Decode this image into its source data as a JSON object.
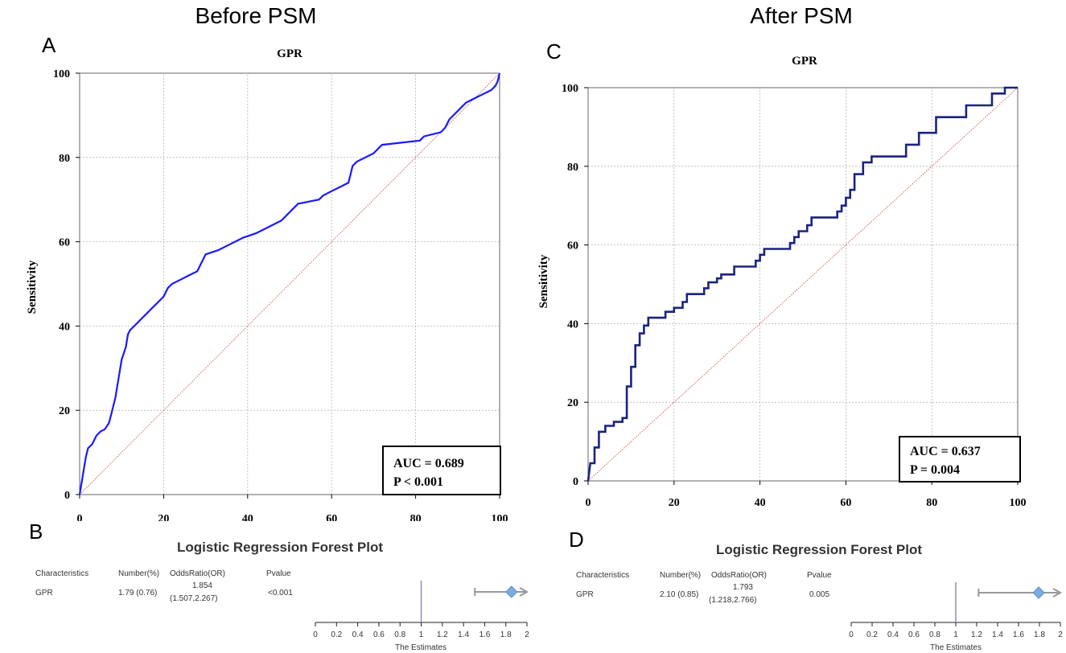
{
  "headers": {
    "before": "Before PSM",
    "after": "After PSM"
  },
  "panel_letters": {
    "a": "A",
    "b": "B",
    "c": "C",
    "d": "D"
  },
  "chart_data": [
    {
      "type": "line",
      "panel": "A",
      "title": "GPR",
      "xlabel": "",
      "ylabel": "Sensitivity",
      "xlim": [
        0,
        100
      ],
      "ylim": [
        0,
        100
      ],
      "yticks": [
        "0",
        "20",
        "40",
        "60",
        "80",
        "100"
      ],
      "xticks": [
        "0",
        "20",
        "40",
        "60",
        "80",
        "100"
      ],
      "grid": true,
      "line_color": "#1a1aff",
      "annotation": {
        "auc": "AUC = 0.689",
        "p": "P < 0.001"
      },
      "roc": [
        [
          0,
          0
        ],
        [
          0.5,
          3
        ],
        [
          1,
          6
        ],
        [
          1.5,
          9
        ],
        [
          2,
          11
        ],
        [
          3,
          12
        ],
        [
          3.5,
          13
        ],
        [
          4,
          14
        ],
        [
          5,
          15
        ],
        [
          6,
          15.5
        ],
        [
          7,
          17
        ],
        [
          7.5,
          19
        ],
        [
          8,
          21
        ],
        [
          8.5,
          23
        ],
        [
          9,
          26
        ],
        [
          9.5,
          29
        ],
        [
          10,
          32
        ],
        [
          11,
          35
        ],
        [
          11.5,
          38
        ],
        [
          12,
          39
        ],
        [
          13,
          40
        ],
        [
          14,
          41
        ],
        [
          15,
          42
        ],
        [
          16,
          43
        ],
        [
          17,
          44
        ],
        [
          18,
          45
        ],
        [
          19,
          46
        ],
        [
          20,
          47
        ],
        [
          21,
          49
        ],
        [
          22,
          50
        ],
        [
          24,
          51
        ],
        [
          26,
          52
        ],
        [
          28,
          53
        ],
        [
          29,
          55
        ],
        [
          30,
          57
        ],
        [
          33,
          58
        ],
        [
          35,
          59
        ],
        [
          37,
          60
        ],
        [
          39,
          61
        ],
        [
          42,
          62
        ],
        [
          44,
          63
        ],
        [
          46,
          64
        ],
        [
          48,
          65
        ],
        [
          49,
          66
        ],
        [
          50,
          67
        ],
        [
          51,
          68
        ],
        [
          52,
          69
        ],
        [
          57,
          70
        ],
        [
          58,
          71
        ],
        [
          60,
          72
        ],
        [
          62,
          73
        ],
        [
          64,
          74
        ],
        [
          64.5,
          76
        ],
        [
          65,
          78
        ],
        [
          66,
          79
        ],
        [
          68,
          80
        ],
        [
          70,
          81
        ],
        [
          71,
          82
        ],
        [
          72,
          83
        ],
        [
          81,
          84
        ],
        [
          82,
          85
        ],
        [
          86,
          86
        ],
        [
          87,
          87
        ],
        [
          87.5,
          88
        ],
        [
          88,
          89
        ],
        [
          89,
          90
        ],
        [
          90,
          91
        ],
        [
          91,
          92
        ],
        [
          92,
          93
        ],
        [
          94,
          94
        ],
        [
          96,
          95
        ],
        [
          97,
          95.5
        ],
        [
          98,
          96
        ],
        [
          99,
          97
        ],
        [
          99.5,
          98
        ],
        [
          100,
          100
        ]
      ]
    },
    {
      "type": "line",
      "panel": "C",
      "title": "GPR",
      "xlabel": "",
      "ylabel": "Sensitivity",
      "xlim": [
        0,
        100
      ],
      "ylim": [
        0,
        100
      ],
      "yticks": [
        "0",
        "20",
        "40",
        "60",
        "80",
        "100"
      ],
      "xticks": [
        "0",
        "20",
        "40",
        "60",
        "80",
        "100"
      ],
      "grid": true,
      "line_color": "#1a237e",
      "annotation": {
        "auc": "AUC = 0.637",
        "p": "P = 0.004"
      },
      "roc": [
        [
          0,
          0
        ],
        [
          0.5,
          4.5
        ],
        [
          1.5,
          4.5
        ],
        [
          1.5,
          8.5
        ],
        [
          2.5,
          8.5
        ],
        [
          2.5,
          12.5
        ],
        [
          4,
          12.5
        ],
        [
          4,
          14
        ],
        [
          6,
          14
        ],
        [
          6,
          15
        ],
        [
          8,
          15
        ],
        [
          8,
          16
        ],
        [
          9,
          16
        ],
        [
          9,
          24
        ],
        [
          10,
          24
        ],
        [
          10,
          29
        ],
        [
          11,
          29
        ],
        [
          11,
          34.5
        ],
        [
          12,
          34.5
        ],
        [
          12,
          37.5
        ],
        [
          13,
          37.5
        ],
        [
          13,
          39.5
        ],
        [
          14,
          39.5
        ],
        [
          14,
          41.5
        ],
        [
          18,
          41.5
        ],
        [
          18,
          43
        ],
        [
          20,
          43
        ],
        [
          20,
          44
        ],
        [
          22,
          44
        ],
        [
          22,
          45.5
        ],
        [
          23,
          45.5
        ],
        [
          23,
          47.5
        ],
        [
          27,
          47.5
        ],
        [
          27,
          49
        ],
        [
          28,
          49
        ],
        [
          28,
          50.5
        ],
        [
          30,
          50.5
        ],
        [
          30,
          51.5
        ],
        [
          31,
          51.5
        ],
        [
          31,
          52.5
        ],
        [
          34,
          52.5
        ],
        [
          34,
          54.5
        ],
        [
          39,
          54.5
        ],
        [
          39,
          56
        ],
        [
          40,
          56
        ],
        [
          40,
          57.5
        ],
        [
          41,
          57.5
        ],
        [
          41,
          59
        ],
        [
          47,
          59
        ],
        [
          47,
          60.5
        ],
        [
          48,
          60.5
        ],
        [
          48,
          62
        ],
        [
          49,
          62
        ],
        [
          49,
          63.5
        ],
        [
          51,
          63.5
        ],
        [
          51,
          65
        ],
        [
          52,
          65
        ],
        [
          52,
          67
        ],
        [
          58,
          67
        ],
        [
          58,
          68.5
        ],
        [
          59,
          68.5
        ],
        [
          59,
          70
        ],
        [
          60,
          70
        ],
        [
          60,
          72
        ],
        [
          61,
          72
        ],
        [
          61,
          74
        ],
        [
          62,
          74
        ],
        [
          62,
          78
        ],
        [
          64,
          78
        ],
        [
          64,
          81
        ],
        [
          66,
          81
        ],
        [
          66,
          82.5
        ],
        [
          74,
          82.5
        ],
        [
          74,
          85.5
        ],
        [
          77,
          85.5
        ],
        [
          77,
          88.5
        ],
        [
          81,
          88.5
        ],
        [
          81,
          92.5
        ],
        [
          88,
          92.5
        ],
        [
          88,
          95.5
        ],
        [
          94,
          95.5
        ],
        [
          94,
          98.5
        ],
        [
          97,
          98.5
        ],
        [
          97,
          100
        ],
        [
          100,
          100
        ]
      ]
    },
    {
      "type": "forest",
      "panel": "B",
      "title": "Logistic Regression Forest Plot",
      "columns": [
        "Characteristics",
        "Number(%)",
        "OddsRatio(OR)",
        "Pvalue"
      ],
      "row": {
        "name": "GPR",
        "number": "1.79 (0.76)",
        "or": "1.854",
        "ci": "(1.507,2.267)",
        "pvalue": "<0.001"
      },
      "estimate": 1.854,
      "ci_low": 1.507,
      "ci_high": 2.267,
      "xlim": [
        0,
        2
      ],
      "xticks": [
        "0",
        "0.2",
        "0.4",
        "0.6",
        "0.8",
        "1",
        "1.2",
        "1.4",
        "1.6",
        "1.8",
        "2"
      ],
      "xlabel": "The Estimates",
      "reference": 1
    },
    {
      "type": "forest",
      "panel": "D",
      "title": "Logistic Regression Forest Plot",
      "columns": [
        "Characteristics",
        "Number(%)",
        "OddsRatio(OR)",
        "Pvalue"
      ],
      "row": {
        "name": "GPR",
        "number": "2.10 (0.85)",
        "or": "1.793",
        "ci": "(1.218,2.766)",
        "pvalue": "0.005"
      },
      "estimate": 1.793,
      "ci_low": 1.218,
      "ci_high": 2.766,
      "xlim": [
        0,
        2
      ],
      "xticks": [
        "0",
        "0.2",
        "0.4",
        "0.6",
        "0.8",
        "1",
        "1.2",
        "1.4",
        "1.6",
        "1.8",
        "2"
      ],
      "xlabel": "The Estimates",
      "reference": 1
    }
  ]
}
